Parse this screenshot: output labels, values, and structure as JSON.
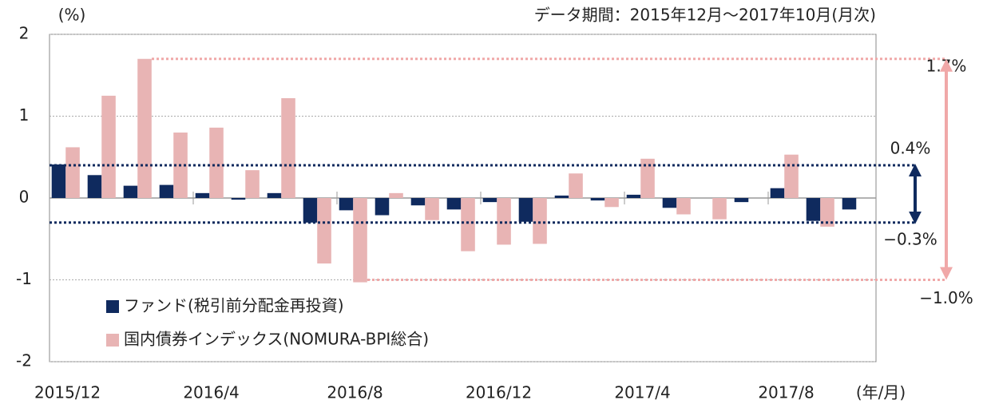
{
  "chart_data": {
    "type": "bar",
    "y_unit_label": "(%)",
    "subtitle": "データ期間：2015年12月～2017年10月(月次)",
    "x_unit_label": "(年/月)",
    "categories": [
      "2015/12",
      null,
      null,
      null,
      "2016/4",
      null,
      null,
      null,
      "2016/8",
      null,
      null,
      null,
      "2016/12",
      null,
      null,
      null,
      "2017/4",
      null,
      null,
      null,
      "2017/8",
      null,
      null
    ],
    "series": [
      {
        "name": "ファンド(税引前分配金再投資)",
        "color": "#0f2a5e",
        "values": [
          0.41,
          0.28,
          0.15,
          0.16,
          0.06,
          -0.02,
          0.06,
          -0.3,
          -0.15,
          -0.21,
          -0.09,
          -0.14,
          -0.05,
          -0.29,
          0.03,
          -0.03,
          0.04,
          -0.12,
          0.0,
          -0.05,
          0.12,
          -0.28,
          -0.14
        ]
      },
      {
        "name": "国内債券インデックス(NOMURA-BPI総合)",
        "color": "#e8b4b4",
        "values": [
          0.62,
          1.25,
          1.7,
          0.8,
          0.86,
          0.34,
          1.22,
          -0.8,
          -1.03,
          0.06,
          -0.27,
          -0.65,
          -0.57,
          -0.56,
          0.3,
          -0.11,
          0.48,
          -0.2,
          -0.26,
          0.0,
          0.53,
          -0.35,
          0.0
        ]
      }
    ],
    "ylim": [
      -2,
      2
    ],
    "yticks": [
      -2,
      -1,
      0,
      1,
      2
    ],
    "grid": true,
    "annotations": [
      {
        "label": "1.7%",
        "value": 1.7,
        "color": "#f0a8a8"
      },
      {
        "label": "0.4%",
        "value": 0.4,
        "color": "#0f2a5e"
      },
      {
        "label": "−0.3%",
        "value": -0.3,
        "color": "#0f2a5e"
      },
      {
        "label": "−1.0%",
        "value": -1.0,
        "color": "#f0a8a8"
      }
    ]
  }
}
